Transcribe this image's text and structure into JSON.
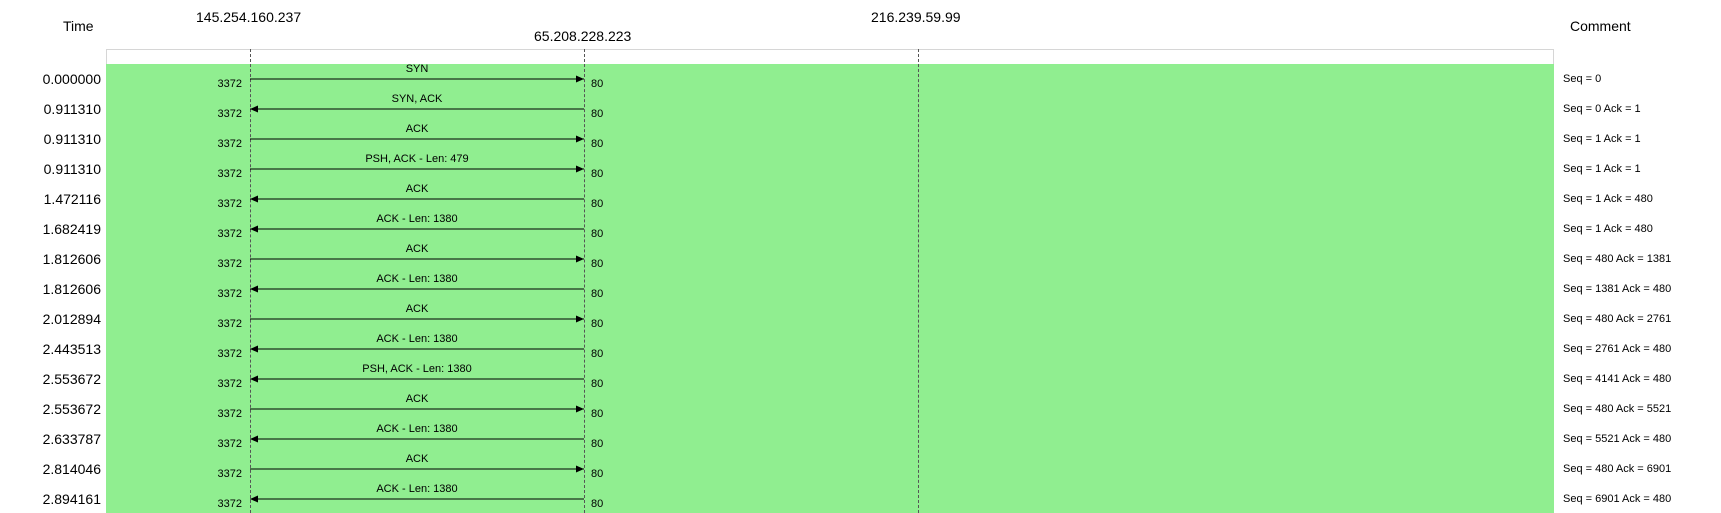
{
  "headers": {
    "time": "Time",
    "comment": "Comment",
    "hosts": [
      "145.254.160.237",
      "65.208.228.223",
      "216.239.59.99"
    ]
  },
  "colors": {
    "canvas_bg": "#90ee90",
    "arrow": "#000000",
    "lifeline": "#555555"
  },
  "flows": [
    {
      "time": "0.000000",
      "label": "SYN",
      "dir": "right",
      "src_port": "3372",
      "dst_port": "80",
      "comment": "Seq = 0"
    },
    {
      "time": "0.911310",
      "label": "SYN, ACK",
      "dir": "left",
      "src_port": "3372",
      "dst_port": "80",
      "comment": "Seq = 0 Ack = 1"
    },
    {
      "time": "0.911310",
      "label": "ACK",
      "dir": "right",
      "src_port": "3372",
      "dst_port": "80",
      "comment": "Seq = 1 Ack = 1"
    },
    {
      "time": "0.911310",
      "label": "PSH, ACK - Len: 479",
      "dir": "right",
      "src_port": "3372",
      "dst_port": "80",
      "comment": "Seq = 1 Ack = 1"
    },
    {
      "time": "1.472116",
      "label": "ACK",
      "dir": "left",
      "src_port": "3372",
      "dst_port": "80",
      "comment": "Seq = 1 Ack = 480"
    },
    {
      "time": "1.682419",
      "label": "ACK - Len: 1380",
      "dir": "left",
      "src_port": "3372",
      "dst_port": "80",
      "comment": "Seq = 1 Ack = 480"
    },
    {
      "time": "1.812606",
      "label": "ACK",
      "dir": "right",
      "src_port": "3372",
      "dst_port": "80",
      "comment": "Seq = 480 Ack = 1381"
    },
    {
      "time": "1.812606",
      "label": "ACK - Len: 1380",
      "dir": "left",
      "src_port": "3372",
      "dst_port": "80",
      "comment": "Seq = 1381 Ack = 480"
    },
    {
      "time": "2.012894",
      "label": "ACK",
      "dir": "right",
      "src_port": "3372",
      "dst_port": "80",
      "comment": "Seq = 480 Ack = 2761"
    },
    {
      "time": "2.443513",
      "label": "ACK - Len: 1380",
      "dir": "left",
      "src_port": "3372",
      "dst_port": "80",
      "comment": "Seq = 2761 Ack = 480"
    },
    {
      "time": "2.553672",
      "label": "PSH, ACK - Len: 1380",
      "dir": "left",
      "src_port": "3372",
      "dst_port": "80",
      "comment": "Seq = 4141 Ack = 480"
    },
    {
      "time": "2.553672",
      "label": "ACK",
      "dir": "right",
      "src_port": "3372",
      "dst_port": "80",
      "comment": "Seq = 480 Ack = 5521"
    },
    {
      "time": "2.633787",
      "label": "ACK - Len: 1380",
      "dir": "left",
      "src_port": "3372",
      "dst_port": "80",
      "comment": "Seq = 5521 Ack = 480"
    },
    {
      "time": "2.814046",
      "label": "ACK",
      "dir": "right",
      "src_port": "3372",
      "dst_port": "80",
      "comment": "Seq = 480 Ack = 6901"
    },
    {
      "time": "2.894161",
      "label": "ACK - Len: 1380",
      "dir": "left",
      "src_port": "3372",
      "dst_port": "80",
      "comment": "Seq = 6901 Ack = 480"
    }
  ]
}
